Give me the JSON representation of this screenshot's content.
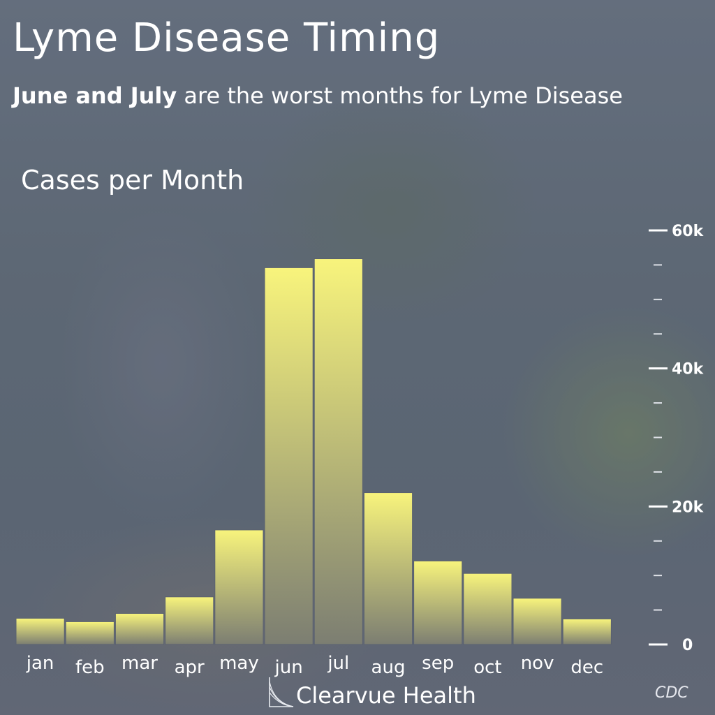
{
  "header": {
    "title": "Lyme Disease Timing",
    "subtitle_bold": "June and July",
    "subtitle_rest": " are the worst months for Lyme Disease"
  },
  "chart_data": {
    "type": "bar",
    "title": "Cases per Month",
    "categories": [
      "jan",
      "feb",
      "mar",
      "apr",
      "may",
      "jun",
      "jul",
      "aug",
      "sep",
      "oct",
      "nov",
      "dec"
    ],
    "values": [
      3800,
      3300,
      4500,
      6900,
      16600,
      54600,
      55900,
      22000,
      12100,
      10300,
      6700,
      3700
    ],
    "ylim": [
      0,
      60000
    ],
    "y_ticks": [
      {
        "value": 0,
        "label": "0"
      },
      {
        "value": 20000,
        "label": "20k"
      },
      {
        "value": 40000,
        "label": "40k"
      },
      {
        "value": 60000,
        "label": "60k"
      }
    ],
    "y_minor_step": 5000,
    "y_axis_side": "right",
    "grid": false,
    "bar_color_top": "#f8f47c",
    "bar_color_bottom": "#7c7e72"
  },
  "footer": {
    "brand": "Clearvue Health",
    "brand_icon": "clearvue-logo-icon",
    "source": "CDC"
  }
}
